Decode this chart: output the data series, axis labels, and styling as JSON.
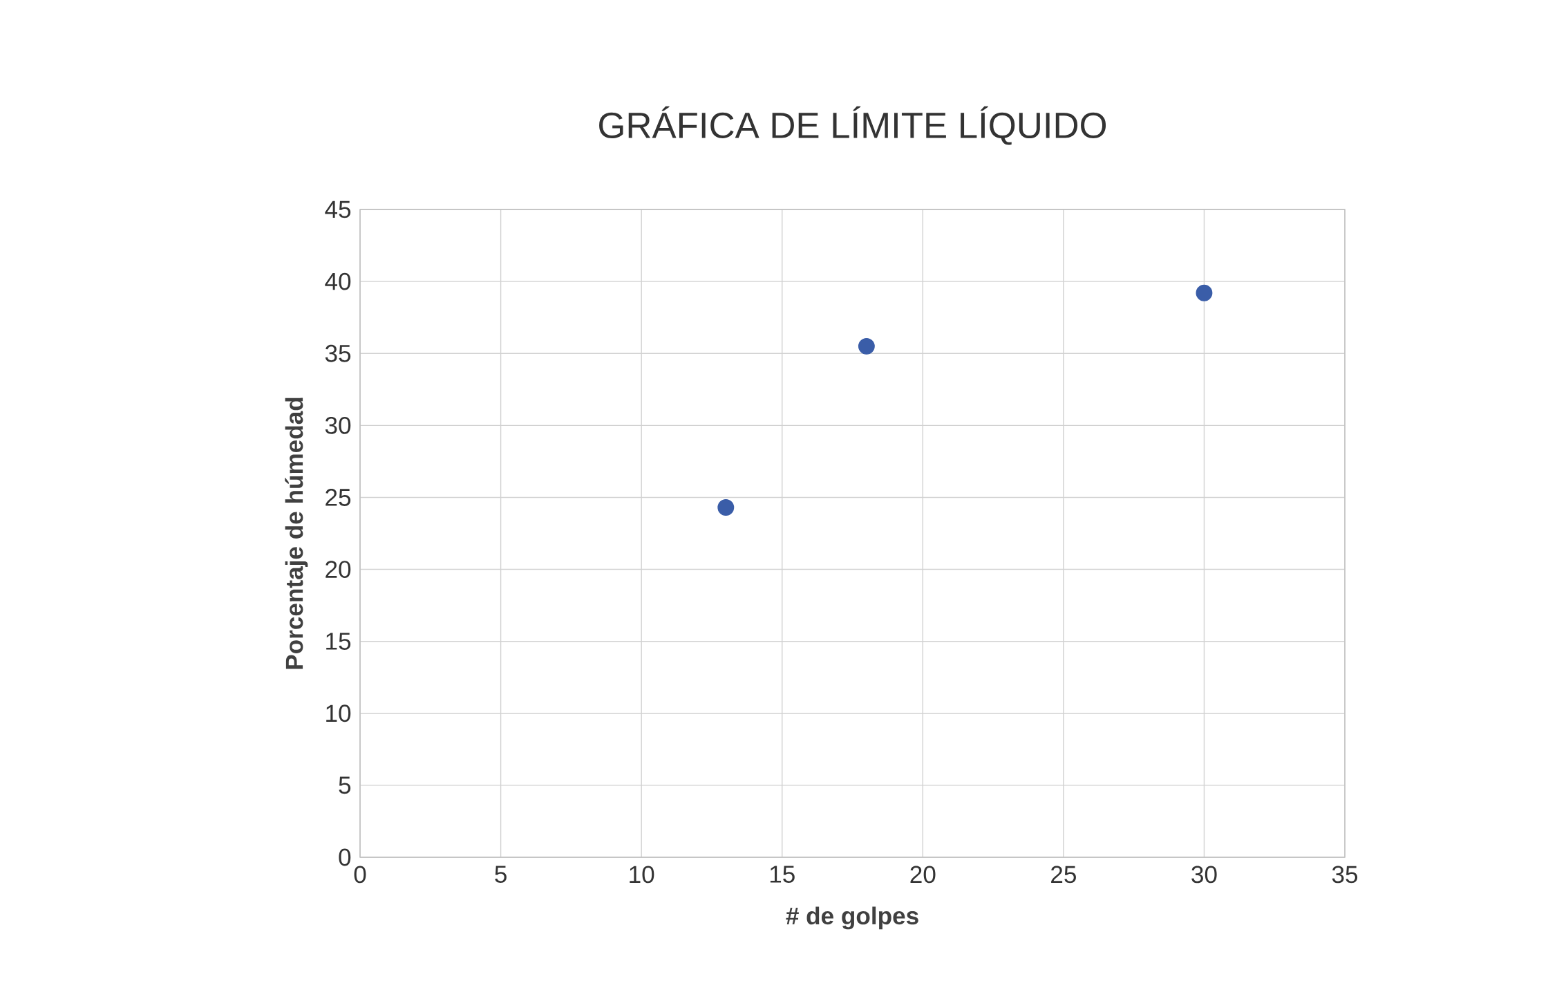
{
  "chart_data": {
    "type": "scatter",
    "title": "GRÁFICA DE LÍMITE LÍQUIDO",
    "xlabel": "# de golpes",
    "ylabel": "Porcentaje de húmedad",
    "x": [
      13,
      18,
      30
    ],
    "series": [
      {
        "color": "#3a5da8",
        "values": [
          24.3,
          35.5,
          39.2
        ]
      }
    ],
    "xlim": [
      0,
      35
    ],
    "xticks": [
      0,
      5,
      10,
      15,
      20,
      25,
      30,
      35
    ],
    "ylim": [
      0,
      45
    ],
    "yticks": [
      0,
      5,
      10,
      15,
      20,
      25,
      30,
      35,
      40,
      45
    ],
    "grid": true,
    "marker": "circle"
  }
}
